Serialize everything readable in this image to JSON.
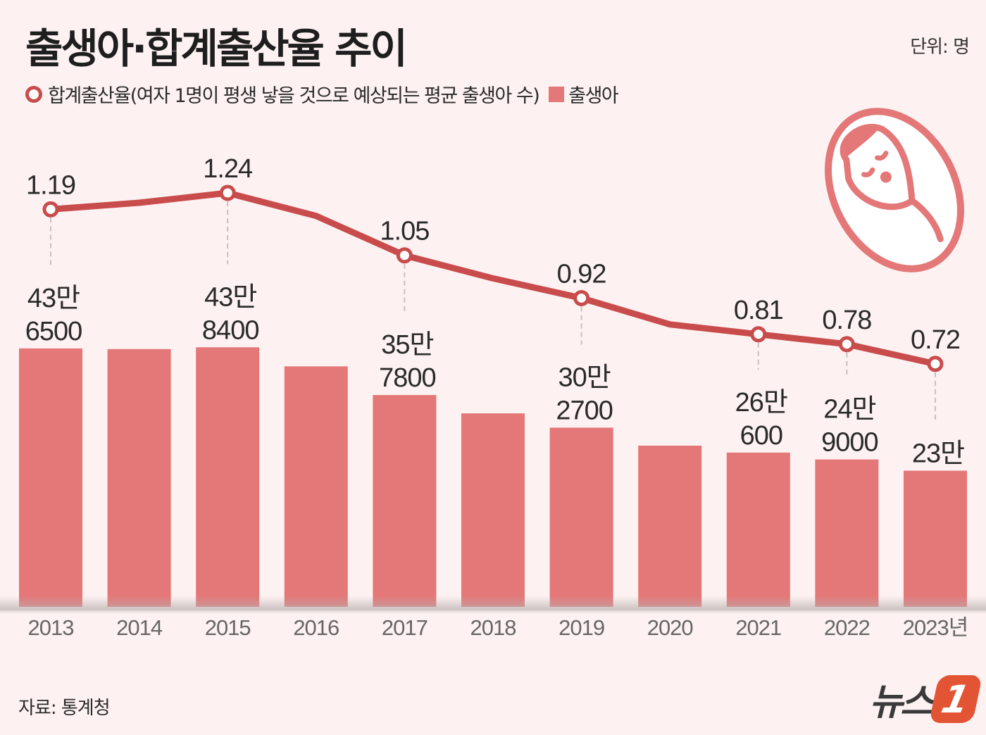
{
  "title": "출생아·합계출산율 추이",
  "unit_label": "단위: 명",
  "legend": {
    "rate_label": "합계출산율(여자 1명이 평생 낳을 것으로 예상되는 평균 출생아 수)",
    "births_label": "출생아"
  },
  "source": "자료: 통계청",
  "logo": {
    "text": "뉴스",
    "mark": "1"
  },
  "icon": "swaddled-baby-icon",
  "colors": {
    "bar": "#e47777",
    "line": "#c94c4c",
    "background": "#fdf2f1",
    "logo_accent": "#e25433"
  },
  "chart_data": {
    "type": "bar+line",
    "categories": [
      "2013",
      "2014",
      "2015",
      "2016",
      "2017",
      "2018",
      "2019",
      "2020",
      "2021",
      "2022",
      "2023년"
    ],
    "series": [
      {
        "name": "출생아",
        "type": "bar",
        "values": [
          436500,
          435400,
          438400,
          406200,
          357800,
          326800,
          302700,
          272300,
          260600,
          249000,
          230000
        ],
        "labels": [
          [
            "43만",
            "6500"
          ],
          null,
          [
            "43만",
            "8400"
          ],
          null,
          [
            "35만",
            "7800"
          ],
          null,
          [
            "30만",
            "2700"
          ],
          null,
          [
            "26만",
            "600"
          ],
          [
            "24만",
            "9000"
          ],
          [
            "23만"
          ]
        ]
      },
      {
        "name": "합계출산율",
        "type": "line",
        "values": [
          1.19,
          1.21,
          1.24,
          1.17,
          1.05,
          0.98,
          0.92,
          0.84,
          0.81,
          0.78,
          0.72
        ],
        "labels": [
          "1.19",
          null,
          "1.24",
          null,
          "1.05",
          null,
          "0.92",
          null,
          "0.81",
          "0.78",
          "0.72"
        ]
      }
    ],
    "grid": false,
    "legend_position": "top-left"
  }
}
